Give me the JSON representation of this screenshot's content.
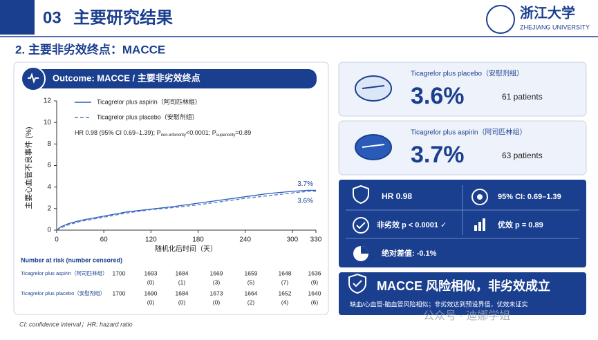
{
  "header": {
    "number": "03",
    "title": "主要研究结果",
    "logo_cn": "浙江大学",
    "logo_en": "ZHEJIANG UNIVERSITY"
  },
  "subtitle": "2. 主要非劣效终点：MACCE",
  "panel_title": "Outcome: MACCE / 主要非劣效终点",
  "chart_data": {
    "type": "line",
    "xlabel": "随机化后时间（天）",
    "ylabel": "主要心血管不良事件 (%)",
    "xlim": [
      0,
      330
    ],
    "xticks": [
      0,
      60,
      120,
      180,
      240,
      300,
      330
    ],
    "ylim": [
      0,
      12
    ],
    "yticks": [
      0,
      2,
      4,
      6,
      8,
      10,
      12
    ],
    "annotation": [
      "HR 0.98 (95% CI 0.69–1.39); P",
      "non-inferiority",
      "<0.0001; P",
      "superiority",
      "=0.89"
    ],
    "series": [
      {
        "name": "Ticagrelor plus aspirin（阿司匹林组）",
        "color": "#2a5bb8",
        "dash": false,
        "x": [
          0,
          5,
          15,
          30,
          45,
          60,
          90,
          120,
          150,
          180,
          210,
          240,
          270,
          300,
          320,
          330
        ],
        "values": [
          0,
          0.3,
          0.6,
          0.9,
          1.1,
          1.3,
          1.7,
          1.95,
          2.2,
          2.5,
          2.8,
          3.1,
          3.4,
          3.6,
          3.7,
          3.7
        ],
        "value_labels": [
          null,
          null,
          null,
          null,
          null,
          null,
          null,
          null,
          null,
          null,
          null,
          null,
          null,
          null,
          null,
          "3.7%"
        ]
      },
      {
        "name": "Ticagrelor plus placebo（安慰剂组）",
        "color": "#4a78c8",
        "dash": true,
        "x": [
          0,
          5,
          15,
          30,
          45,
          60,
          90,
          120,
          150,
          180,
          210,
          240,
          270,
          300,
          320,
          330
        ],
        "values": [
          0,
          0.2,
          0.5,
          0.8,
          1.0,
          1.2,
          1.6,
          1.9,
          2.1,
          2.35,
          2.65,
          2.95,
          3.2,
          3.45,
          3.6,
          3.6
        ],
        "value_labels": [
          null,
          null,
          null,
          null,
          null,
          null,
          null,
          null,
          null,
          null,
          null,
          null,
          null,
          null,
          null,
          "3.6%"
        ]
      }
    ]
  },
  "risk_table": {
    "title": "Number at risk (number censored)",
    "rows": [
      {
        "label": "Ticagrelor plus aspirin（阿司匹林组）",
        "at_risk": [
          1700,
          1693,
          1684,
          1669,
          1659,
          1648,
          1636
        ],
        "censored": [
          null,
          "(0)",
          "(1)",
          "(3)",
          "(5)",
          "(7)",
          "(9)"
        ]
      },
      {
        "label": "Ticagrelor plus placebo（安慰剂组）",
        "at_risk": [
          1700,
          1690,
          1684,
          1673,
          1664,
          1652,
          1640
        ],
        "censored": [
          null,
          "(0)",
          "(0)",
          "(0)",
          "(2)",
          "(4)",
          "(6)"
        ]
      }
    ]
  },
  "footnote": "CI: confidence interval；HR: hazard ratio",
  "cards": [
    {
      "name": "Ticagrelor plus placebo（安慰剂组）",
      "value": "3.6%",
      "patients": "61 patients"
    },
    {
      "name": "Ticagrelor plus aspirin（阿司匹林组）",
      "value": "3.7%",
      "patients": "63 patients"
    }
  ],
  "stats": {
    "hr": "HR  0.98",
    "ci": "95% CI: 0.69–1.39",
    "noninf": "非劣效  p < 0.0001 ✓",
    "sup": "优效  p = 0.89",
    "diff": "绝对差值:  -0.1%"
  },
  "conclusion": {
    "title": "MACCE 风险相似，非劣效成立",
    "text": "缺血/心血管-脑血管风险相似；非劣效达到预设界值，优效未证实"
  },
  "watermark": "公众号 · 迪娜学姐"
}
